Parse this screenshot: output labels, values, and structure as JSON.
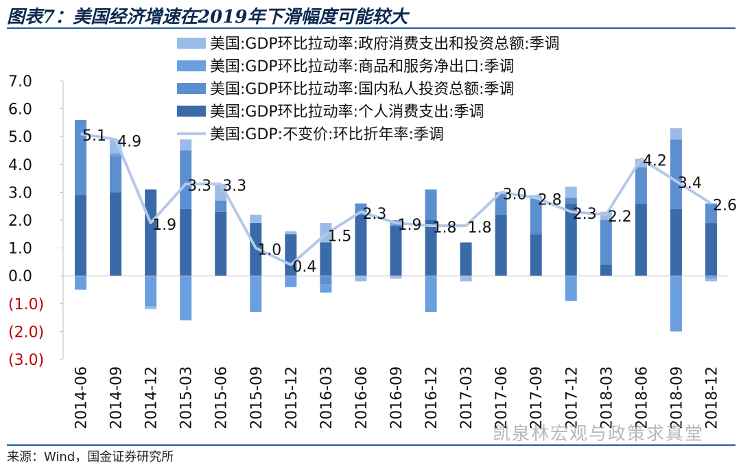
{
  "title": "图表7：美国经济增速在2019年下滑幅度可能较大",
  "source": "来源：Wind，国金证券研究所",
  "watermark": "凯泉林宏观与政策求真堂",
  "chart_data": {
    "type": "bar",
    "stacked": true,
    "categories": [
      "2014-06",
      "2014-09",
      "2014-12",
      "2015-03",
      "2015-06",
      "2015-09",
      "2015-12",
      "2016-03",
      "2016-06",
      "2016-09",
      "2016-12",
      "2017-03",
      "2017-06",
      "2017-09",
      "2017-12",
      "2018-03",
      "2018-06",
      "2018-09",
      "2018-12"
    ],
    "ylim": [
      -3,
      7
    ],
    "yticks": [
      "7.0",
      "6.0",
      "5.0",
      "4.0",
      "3.0",
      "2.0",
      "1.0",
      "0.0",
      "(1.0)",
      "(2.0)",
      "(3.0)"
    ],
    "legend_position": "top-right",
    "series": [
      {
        "name": "美国:GDP环比拉动率:个人消费支出:季调",
        "color": "#3a6aa8",
        "kind": "bar",
        "values": [
          2.9,
          3.0,
          3.1,
          2.4,
          2.3,
          1.9,
          1.5,
          1.2,
          2.2,
          1.8,
          2.0,
          1.2,
          2.2,
          1.5,
          2.6,
          0.4,
          2.6,
          2.4,
          1.9
        ]
      },
      {
        "name": "美国:GDP环比拉动率:国内私人投资总额:季调",
        "color": "#5b8fd0",
        "kind": "bar",
        "values": [
          2.7,
          1.3,
          0.0,
          2.1,
          0.4,
          0.0,
          0.0,
          -0.3,
          0.4,
          0.0,
          1.1,
          0.0,
          0.8,
          1.3,
          0.2,
          1.6,
          1.3,
          2.5,
          0.7
        ]
      },
      {
        "name": "美国:GDP环比拉动率:商品和服务净出口:季调",
        "color": "#6a9fe0",
        "kind": "bar",
        "values": [
          -0.5,
          0.1,
          -1.1,
          -1.6,
          0.0,
          -1.3,
          -0.4,
          -0.3,
          0.0,
          0.2,
          -1.3,
          0.0,
          0.0,
          0.0,
          -0.9,
          0.0,
          0.0,
          -2.0,
          -0.1
        ]
      },
      {
        "name": "美国:GDP环比拉动率:政府消费支出和投资总额:季调",
        "color": "#9bbce8",
        "kind": "bar",
        "values": [
          0.0,
          0.5,
          -0.1,
          0.4,
          0.6,
          0.3,
          0.1,
          0.7,
          -0.2,
          -0.1,
          0.0,
          -0.2,
          0.0,
          0.1,
          0.4,
          0.3,
          0.3,
          0.4,
          -0.1
        ]
      },
      {
        "name": "美国:GDP:不变价:环比折年率:季调",
        "color": "#b4c8e8",
        "kind": "line",
        "values": [
          5.1,
          4.9,
          1.9,
          3.3,
          3.3,
          1.0,
          0.4,
          1.5,
          2.3,
          1.9,
          1.8,
          1.8,
          3.0,
          2.8,
          2.3,
          2.2,
          4.2,
          3.4,
          2.6
        ],
        "labels": [
          "5.1",
          "4.9",
          "1.9",
          "3.3",
          "3.3",
          "1.0",
          "0.4",
          "1.5",
          "2.3",
          "1.9",
          "1.8",
          "1.8",
          "3.0",
          "2.8",
          "2.3",
          "2.2",
          "4.2",
          "3.4",
          "2.6"
        ]
      }
    ],
    "legend_order": [
      3,
      2,
      1,
      0,
      4
    ]
  }
}
